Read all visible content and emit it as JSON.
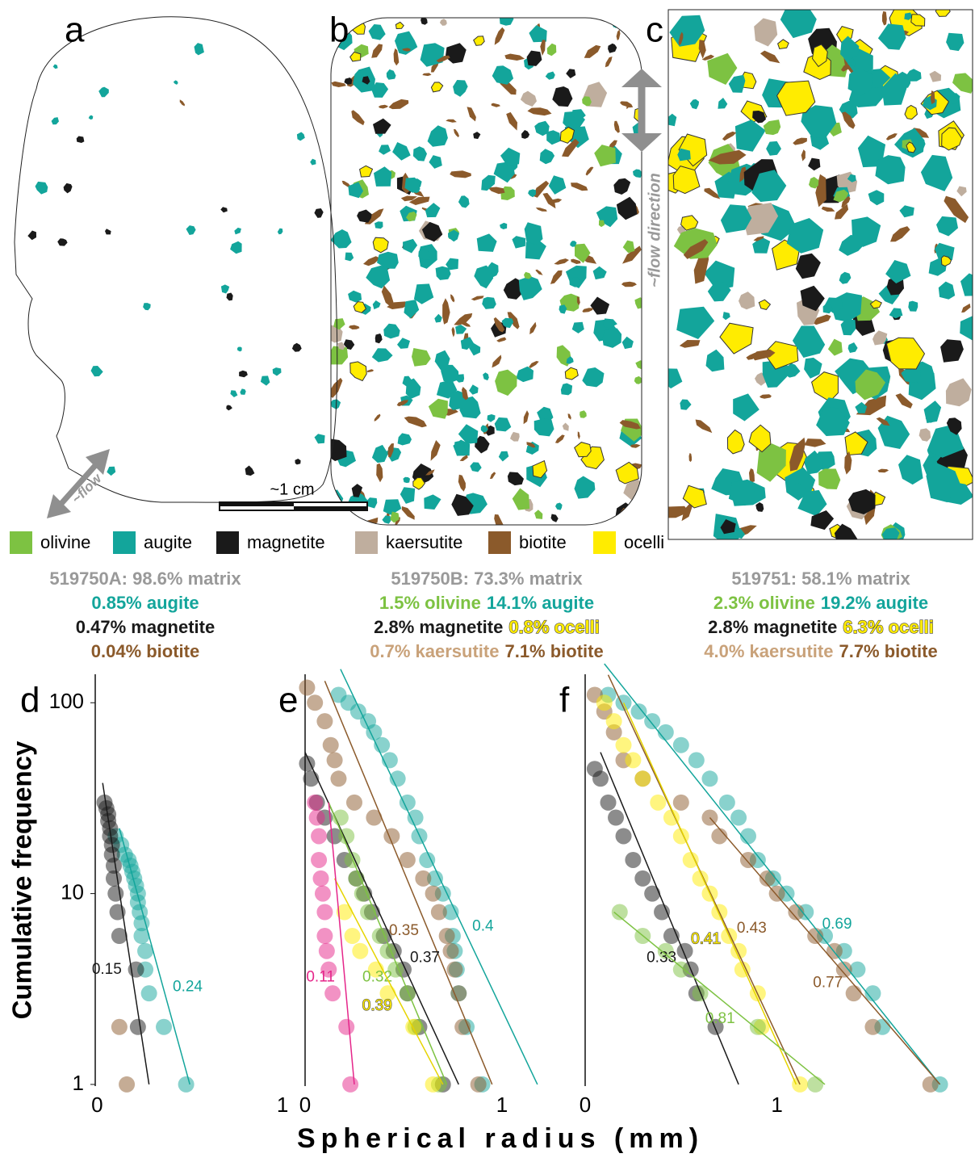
{
  "panel_labels": [
    "a",
    "b",
    "c"
  ],
  "flow_labels": [
    "~flow",
    "~flow direction"
  ],
  "scale_bar": "~1 cm",
  "legend": [
    {
      "name": "olivine",
      "color": "#7dc242"
    },
    {
      "name": "augite",
      "color": "#13a59b"
    },
    {
      "name": "magnetite",
      "color": "#1a1a1a"
    },
    {
      "name": "kaersutite",
      "color": "#bfae9e"
    },
    {
      "name": "biotite",
      "color": "#8b5a2b"
    },
    {
      "name": "ocelli",
      "color": "#ffec00"
    }
  ],
  "compositions": [
    [
      [
        {
          "text": "519750A: 98.6% matrix",
          "color": "#999999"
        }
      ],
      [
        {
          "text": "0.85% augite",
          "color": "#13a59b"
        }
      ],
      [
        {
          "text": "0.47% magnetite",
          "color": "#1a1a1a"
        }
      ],
      [
        {
          "text": "0.04% biotite",
          "color": "#8b5a2b"
        }
      ]
    ],
    [
      [
        {
          "text": "519750B: 73.3% matrix",
          "color": "#999999"
        }
      ],
      [
        {
          "text": "1.5% olivine",
          "color": "#7dc242"
        },
        {
          "text": "14.1% augite",
          "color": "#13a59b"
        }
      ],
      [
        {
          "text": "2.8% magnetite",
          "color": "#1a1a1a"
        },
        {
          "text": "0.8% ocelli",
          "color": "#ffec00",
          "outline": true
        }
      ],
      [
        {
          "text": "0.7% kaersutite",
          "color": "#c9a27a"
        },
        {
          "text": "7.1% biotite",
          "color": "#8b5a2b"
        }
      ]
    ],
    [
      [
        {
          "text": "519751: 58.1% matrix",
          "color": "#999999"
        }
      ],
      [
        {
          "text": "2.3% olivine",
          "color": "#7dc242"
        },
        {
          "text": "19.2% augite",
          "color": "#13a59b"
        }
      ],
      [
        {
          "text": "2.8% magnetite",
          "color": "#1a1a1a"
        },
        {
          "text": "6.3% ocelli",
          "color": "#ffec00",
          "outline": true
        }
      ],
      [
        {
          "text": "4.0% kaersutite",
          "color": "#c9a27a"
        },
        {
          "text": "7.7% biotite",
          "color": "#8b5a2b"
        }
      ]
    ]
  ],
  "y_label": "Cumulative frequency",
  "x_label": "Spherical radius (mm)",
  "chart_data": [
    {
      "type": "scatter",
      "panel": "d",
      "log_y": true,
      "xlim": [
        -0.01,
        1.03
      ],
      "ylim": [
        0.98,
        141
      ],
      "xticks": [
        0,
        1
      ],
      "yticks": [
        1,
        10,
        100
      ],
      "series": [
        {
          "color": "#13a59b",
          "x": [
            0.1,
            0.13,
            0.15,
            0.17,
            0.18,
            0.19,
            0.2,
            0.21,
            0.22,
            0.22,
            0.23,
            0.24,
            0.24,
            0.26,
            0.26,
            0.28,
            0.36,
            0.48
          ],
          "values": [
            20,
            18,
            16,
            15,
            14,
            13,
            12,
            11,
            10,
            9,
            8,
            7,
            6,
            5,
            4,
            3,
            2,
            1
          ],
          "fits": [
            {
              "x": [
                0.12,
                0.5
              ],
              "y": [
                22,
                1
              ],
              "label": 0.24,
              "side": "right"
            }
          ]
        },
        {
          "color": "#1a1a1a",
          "x": [
            0.04,
            0.05,
            0.06,
            0.06,
            0.07,
            0.07,
            0.08,
            0.08,
            0.09,
            0.09,
            0.1,
            0.11,
            0.12,
            0.21,
            0.22
          ],
          "values": [
            30,
            28,
            26,
            24,
            22,
            20,
            18,
            16,
            14,
            12,
            10,
            8,
            6,
            4,
            2
          ],
          "fits": [
            {
              "x": [
                0.03,
                0.28
              ],
              "y": [
                38,
                1
              ],
              "label": 0.15,
              "side": "left"
            }
          ]
        },
        {
          "color": "#8b5a2b",
          "x": [
            0.12,
            0.16
          ],
          "values": [
            2,
            1
          ],
          "fits": []
        }
      ]
    },
    {
      "type": "scatter",
      "panel": "e",
      "log_y": true,
      "xlim": [
        0,
        1.32
      ],
      "ylim": [
        0.98,
        141
      ],
      "xticks": [
        0,
        1
      ],
      "series": [
        {
          "color": "#13a59b",
          "x": [
            0.17,
            0.22,
            0.27,
            0.32,
            0.35,
            0.39,
            0.43,
            0.47,
            0.52,
            0.56,
            0.58,
            0.62,
            0.66,
            0.7,
            0.74,
            0.75,
            0.76,
            0.77,
            0.78,
            0.82,
            0.9
          ],
          "values": [
            110,
            100,
            90,
            80,
            70,
            60,
            50,
            40,
            30,
            25,
            20,
            15,
            12,
            10,
            8,
            6,
            5,
            4,
            3,
            2,
            1
          ],
          "fits": [
            {
              "x": [
                0.18,
                1.18
              ],
              "y": [
                150,
                1
              ],
              "label": 0.4,
              "side": "right"
            }
          ]
        },
        {
          "color": "#8b5a2b",
          "x": [
            0.01,
            0.05,
            0.1,
            0.13,
            0.15,
            0.17,
            0.25,
            0.35,
            0.44,
            0.52,
            0.6,
            0.65,
            0.68,
            0.72,
            0.74,
            0.76,
            0.78,
            0.8,
            0.88
          ],
          "values": [
            120,
            100,
            80,
            60,
            50,
            40,
            30,
            25,
            20,
            15,
            12,
            10,
            8,
            6,
            5,
            4,
            3,
            2,
            1
          ],
          "fits": [
            {
              "x": [
                0.1,
                0.95
              ],
              "y": [
                130,
                1
              ],
              "label": 0.35,
              "side": "left"
            }
          ]
        },
        {
          "color": "#1a1a1a",
          "x": [
            0.01,
            0.03,
            0.06,
            0.1,
            0.15,
            0.2,
            0.26,
            0.3,
            0.34,
            0.4,
            0.45,
            0.5,
            0.52,
            0.58,
            0.7
          ],
          "values": [
            48,
            40,
            30,
            25,
            20,
            15,
            12,
            10,
            8,
            6,
            5,
            4,
            3,
            2,
            1
          ],
          "fits": [
            {
              "x": [
                0.0,
                0.78
              ],
              "y": [
                55,
                1
              ],
              "label": 0.37,
              "side": "right"
            }
          ]
        },
        {
          "color": "#7dc242",
          "x": [
            0.18,
            0.21,
            0.24,
            0.26,
            0.29,
            0.32,
            0.38,
            0.42,
            0.46,
            0.52,
            0.56,
            0.68
          ],
          "values": [
            25,
            20,
            15,
            12,
            10,
            8,
            6,
            5,
            4,
            3,
            2,
            1
          ],
          "fits": [
            {
              "x": [
                0.12,
                0.72
              ],
              "y": [
                30,
                1
              ],
              "label": 0.32,
              "side": "left"
            }
          ]
        },
        {
          "color": "#ffec00",
          "outline": true,
          "x": [
            0.2,
            0.24,
            0.28,
            0.36,
            0.42,
            0.55,
            0.65
          ],
          "values": [
            8,
            6,
            5,
            4,
            3,
            2,
            1
          ],
          "fits": [
            {
              "x": [
                0.15,
                0.7
              ],
              "y": [
                12,
                1
              ],
              "label": 0.39,
              "side": "left"
            }
          ]
        },
        {
          "color": "#e5268a",
          "x": [
            0.05,
            0.06,
            0.07,
            0.07,
            0.08,
            0.09,
            0.1,
            0.1,
            0.11,
            0.12,
            0.14,
            0.21,
            0.23
          ],
          "values": [
            30,
            25,
            20,
            15,
            12,
            10,
            8,
            6,
            5,
            4,
            3,
            2,
            1
          ],
          "fits": [
            {
              "x": [
                0.12,
                0.25
              ],
              "y": [
                30,
                1
              ],
              "label": 0.11,
              "side": "left"
            }
          ]
        }
      ]
    },
    {
      "type": "scatter",
      "panel": "f",
      "log_y": true,
      "xlim": [
        0,
        2.02
      ],
      "ylim": [
        0.98,
        141
      ],
      "xticks": [
        0,
        1
      ],
      "series": [
        {
          "color": "#13a59b",
          "x": [
            0.12,
            0.2,
            0.28,
            0.35,
            0.42,
            0.5,
            0.58,
            0.65,
            0.74,
            0.8,
            0.85,
            0.9,
            0.98,
            1.05,
            1.15,
            1.25,
            1.35,
            1.42,
            1.5,
            1.55,
            1.85
          ],
          "values": [
            110,
            100,
            90,
            80,
            70,
            60,
            50,
            40,
            30,
            25,
            20,
            15,
            12,
            10,
            8,
            6,
            5,
            4,
            3,
            2,
            1
          ],
          "fits": [
            {
              "x": [
                0.1,
                1.85
              ],
              "y": [
                160,
                1
              ],
              "label": 0.69,
              "side": "right"
            }
          ]
        },
        {
          "color": "#8b5a2b",
          "x": [
            0.05,
            0.1,
            0.15,
            0.2,
            0.3,
            0.5,
            0.65,
            0.7,
            0.85,
            0.95,
            1.0,
            1.1,
            1.2,
            1.3,
            1.35,
            1.4,
            1.5,
            1.8
          ],
          "values": [
            110,
            90,
            70,
            50,
            40,
            30,
            25,
            20,
            15,
            12,
            10,
            8,
            6,
            5,
            4,
            3,
            2,
            1
          ],
          "fits": [
            {
              "x": [
                0.12,
                1.12
              ],
              "y": [
                140,
                1
              ],
              "label": 0.43,
              "side": "right"
            },
            {
              "x": [
                0.65,
                1.85
              ],
              "y": [
                25,
                1
              ],
              "label": 0.77,
              "side": "left"
            }
          ]
        },
        {
          "color": "#ffec00",
          "outline": true,
          "x": [
            0.1,
            0.15,
            0.2,
            0.25,
            0.3,
            0.38,
            0.45,
            0.5,
            0.55,
            0.6,
            0.65,
            0.7,
            0.75,
            0.8,
            0.82,
            0.9,
            0.92,
            1.12
          ],
          "values": [
            100,
            80,
            60,
            50,
            40,
            30,
            25,
            20,
            15,
            12,
            10,
            8,
            6,
            5,
            4,
            3,
            2,
            1
          ],
          "fits": [
            {
              "x": [
                0.2,
                1.1
              ],
              "y": [
                100,
                1
              ],
              "label": 0.41,
              "side": "left"
            }
          ]
        },
        {
          "color": "#1a1a1a",
          "x": [
            0.05,
            0.08,
            0.12,
            0.16,
            0.2,
            0.25,
            0.3,
            0.35,
            0.4,
            0.45,
            0.52,
            0.55,
            0.58,
            0.68
          ],
          "values": [
            45,
            40,
            30,
            25,
            20,
            15,
            12,
            10,
            8,
            6,
            5,
            4,
            3,
            2
          ],
          "fits": [
            {
              "x": [
                0.08,
                0.8
              ],
              "y": [
                55,
                1
              ],
              "label": 0.33,
              "side": "left"
            }
          ]
        },
        {
          "color": "#7dc242",
          "x": [
            0.18,
            0.3,
            0.42,
            0.5,
            0.6,
            0.9,
            1.2
          ],
          "values": [
            8,
            6,
            5,
            4,
            3,
            2,
            1
          ],
          "fits": [
            {
              "x": [
                0.15,
                1.25
              ],
              "y": [
                8,
                1
              ],
              "label": 0.81,
              "side": "left"
            }
          ]
        }
      ]
    }
  ]
}
